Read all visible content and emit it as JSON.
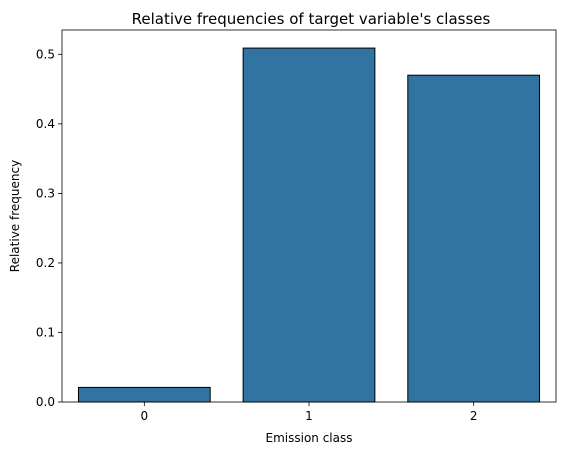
{
  "chart_data": {
    "type": "bar",
    "title": "Relative frequencies of target variable's classes",
    "xlabel": "Emission class",
    "ylabel": "Relative frequency",
    "categories": [
      "0",
      "1",
      "2"
    ],
    "values": [
      0.021,
      0.509,
      0.47
    ],
    "ylim": [
      0,
      0.535
    ],
    "yticks": [
      0.0,
      0.1,
      0.2,
      0.3,
      0.4,
      0.5
    ],
    "ytick_labels": [
      "0.0",
      "0.1",
      "0.2",
      "0.3",
      "0.4",
      "0.5"
    ],
    "bar_color": "#3274a1",
    "edge_color": "#000000",
    "grid": false
  }
}
